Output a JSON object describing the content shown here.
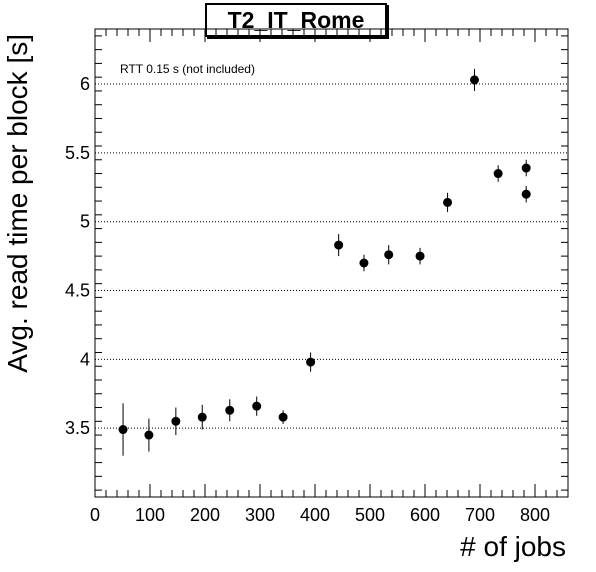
{
  "chart_data": {
    "type": "scatter",
    "title": "T2_IT_Rome",
    "xlabel": "# of jobs",
    "ylabel": "Avg. read time per block [s]",
    "annotation": "RTT 0.15 s (not included)",
    "xlim": [
      0,
      860
    ],
    "ylim": [
      3.0,
      6.4
    ],
    "x_ticks": [
      0,
      100,
      200,
      300,
      400,
      500,
      600,
      700,
      800
    ],
    "y_ticks": [
      3.5,
      4,
      4.5,
      5,
      5.5,
      6
    ],
    "y_tick_labels": [
      "3.5",
      "4",
      "4.5",
      "5",
      "5.5",
      "6"
    ],
    "grid": "horizontal dotted",
    "series": [
      {
        "x": [
          51,
          98,
          147,
          195,
          245,
          294,
          342,
          392,
          443,
          489,
          534,
          591,
          641,
          690,
          733,
          784,
          784
        ],
        "y": [
          3.49,
          3.45,
          3.55,
          3.58,
          3.63,
          3.66,
          3.58,
          3.98,
          4.83,
          4.7,
          4.76,
          4.75,
          5.14,
          6.03,
          5.35,
          5.39,
          5.2
        ],
        "err": [
          0.19,
          0.12,
          0.1,
          0.09,
          0.08,
          0.07,
          0.05,
          0.07,
          0.08,
          0.06,
          0.07,
          0.06,
          0.07,
          0.08,
          0.06,
          0.06,
          0.06
        ]
      }
    ]
  }
}
